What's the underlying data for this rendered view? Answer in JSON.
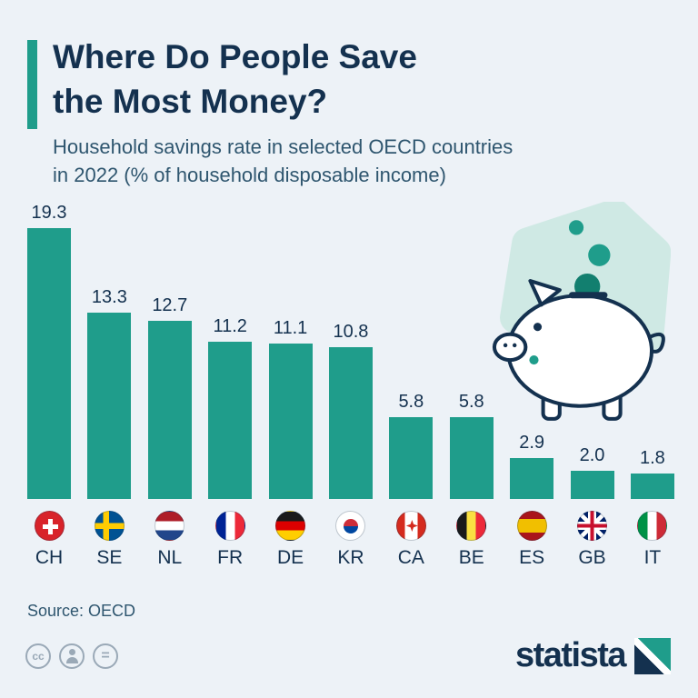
{
  "header": {
    "title_line1": "Where Do People Save",
    "title_line2": "the Most Money?",
    "subtitle_line1": "Household savings rate in selected OECD countries",
    "subtitle_line2": "in 2022 (% of household disposable income)"
  },
  "chart_data": {
    "type": "bar",
    "title": "Where Do People Save the Most Money?",
    "subtitle": "Household savings rate in selected OECD countries in 2022 (% of household disposable income)",
    "categories": [
      "CH",
      "SE",
      "NL",
      "FR",
      "DE",
      "KR",
      "CA",
      "BE",
      "ES",
      "GB",
      "IT"
    ],
    "values": [
      19.3,
      13.3,
      12.7,
      11.2,
      11.1,
      10.8,
      5.8,
      5.8,
      2.9,
      2.0,
      1.8
    ],
    "value_labels": [
      "19.3",
      "13.3",
      "12.7",
      "11.2",
      "11.1",
      "10.8",
      "5.8",
      "5.8",
      "2.9",
      "2.0",
      "1.8"
    ],
    "xlabel": "",
    "ylabel": "% of household disposable income",
    "ylim": [
      0,
      20
    ],
    "grid": false,
    "legend": "none",
    "bar_color": "#1f9d8b"
  },
  "footer": {
    "source": "Source: OECD",
    "logo_text": "statista",
    "cc_label": "cc",
    "equals_label": "="
  },
  "colors": {
    "background": "#edf2f7",
    "accent_teal": "#1f9d8b",
    "dark_navy": "#14314f",
    "subtitle_gray_blue": "#2f566f",
    "blob_light_teal": "#cfe9e4",
    "coin_dark_teal": "#127f6f"
  }
}
